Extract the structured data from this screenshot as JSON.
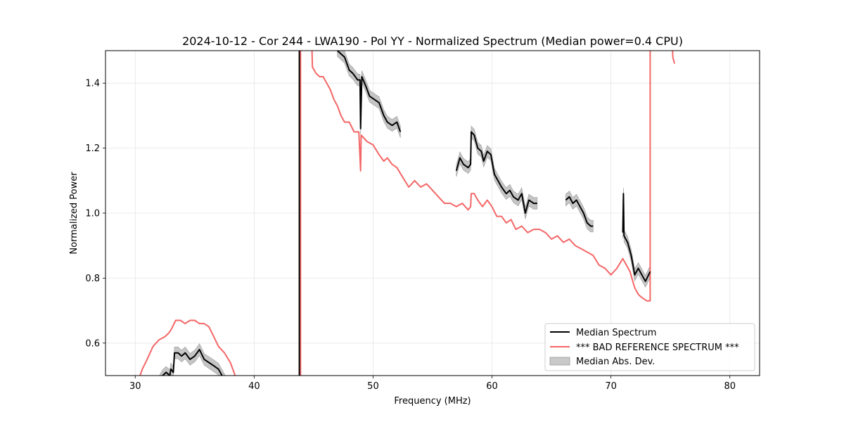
{
  "chart_data": {
    "type": "line",
    "title": "2024-10-12 - Cor 244 - LWA190 - Pol YY - Normalized Spectrum (Median power=0.4 CPU)",
    "xlabel": "Frequency (MHz)",
    "ylabel": "Normalized Power",
    "xlim": [
      27.5,
      82.5
    ],
    "ylim": [
      0.5,
      1.5
    ],
    "xticks": [
      30,
      40,
      50,
      60,
      70,
      80
    ],
    "yticks": [
      0.6,
      0.8,
      1.0,
      1.2,
      1.4
    ],
    "grid": true,
    "legend_position": "bottom-right",
    "legend": [
      {
        "key": "median",
        "label": "Median Spectrum"
      },
      {
        "key": "reference",
        "label": "*** BAD REFERENCE SPECTRUM ***"
      },
      {
        "key": "mad",
        "label": "Median Abs. Dev."
      }
    ],
    "colors": {
      "median": "#000000",
      "reference": "#f46666",
      "mad": "#bbbbbb",
      "grid": "#e6e6e6"
    },
    "series": [
      {
        "name": "Median Spectrum",
        "segments": [
          [
            [
              32.0,
              0.48
            ],
            [
              32.3,
              0.5
            ],
            [
              32.6,
              0.51
            ],
            [
              32.9,
              0.5
            ],
            [
              33.0,
              0.52
            ],
            [
              33.2,
              0.51
            ],
            [
              33.3,
              0.57
            ],
            [
              33.6,
              0.57
            ],
            [
              33.9,
              0.56
            ],
            [
              34.2,
              0.57
            ],
            [
              34.6,
              0.55
            ],
            [
              35.0,
              0.56
            ],
            [
              35.4,
              0.58
            ],
            [
              35.8,
              0.55
            ],
            [
              36.2,
              0.54
            ],
            [
              36.6,
              0.53
            ],
            [
              37.0,
              0.52
            ],
            [
              37.3,
              0.5
            ],
            [
              37.6,
              0.48
            ]
          ],
          [
            [
              43.8,
              1.6
            ],
            [
              43.8,
              0.4
            ]
          ],
          [
            [
              47.0,
              1.5
            ],
            [
              47.3,
              1.49
            ],
            [
              47.6,
              1.48
            ],
            [
              48.0,
              1.44
            ],
            [
              48.3,
              1.43
            ],
            [
              48.7,
              1.41
            ],
            [
              48.9,
              1.41
            ],
            [
              48.95,
              1.26
            ],
            [
              49.05,
              1.42
            ],
            [
              49.4,
              1.39
            ],
            [
              49.7,
              1.36
            ],
            [
              50.1,
              1.35
            ],
            [
              50.5,
              1.34
            ],
            [
              50.9,
              1.3
            ],
            [
              51.2,
              1.28
            ],
            [
              51.6,
              1.27
            ],
            [
              52.0,
              1.28
            ],
            [
              52.3,
              1.25
            ]
          ],
          [
            [
              57.0,
              1.13
            ],
            [
              57.3,
              1.17
            ],
            [
              57.6,
              1.15
            ],
            [
              58.0,
              1.14
            ],
            [
              58.2,
              1.15
            ],
            [
              58.25,
              1.25
            ],
            [
              58.5,
              1.24
            ],
            [
              58.8,
              1.2
            ],
            [
              59.1,
              1.19
            ],
            [
              59.3,
              1.16
            ],
            [
              59.6,
              1.19
            ],
            [
              59.9,
              1.18
            ],
            [
              60.2,
              1.12
            ],
            [
              60.5,
              1.1
            ],
            [
              60.8,
              1.08
            ],
            [
              61.2,
              1.06
            ],
            [
              61.5,
              1.07
            ],
            [
              61.8,
              1.05
            ],
            [
              62.2,
              1.04
            ],
            [
              62.5,
              1.06
            ],
            [
              62.8,
              1.0
            ],
            [
              63.1,
              1.04
            ],
            [
              63.5,
              1.03
            ],
            [
              63.8,
              1.03
            ]
          ],
          [
            [
              66.2,
              1.04
            ],
            [
              66.5,
              1.05
            ],
            [
              66.8,
              1.03
            ],
            [
              67.1,
              1.04
            ],
            [
              67.4,
              1.02
            ],
            [
              67.7,
              1.0
            ],
            [
              68.0,
              0.97
            ],
            [
              68.3,
              0.96
            ],
            [
              68.5,
              0.96
            ]
          ],
          [
            [
              71.0,
              0.94
            ],
            [
              71.05,
              1.06
            ],
            [
              71.1,
              0.93
            ],
            [
              71.4,
              0.91
            ],
            [
              71.7,
              0.87
            ],
            [
              72.0,
              0.81
            ],
            [
              72.3,
              0.83
            ],
            [
              72.6,
              0.81
            ],
            [
              72.9,
              0.79
            ],
            [
              73.3,
              0.82
            ]
          ]
        ]
      },
      {
        "name": "*** BAD REFERENCE SPECTRUM ***",
        "segments": [
          [
            [
              30.2,
              0.48
            ],
            [
              30.6,
              0.52
            ],
            [
              31.0,
              0.55
            ],
            [
              31.5,
              0.59
            ],
            [
              32.0,
              0.61
            ],
            [
              32.5,
              0.62
            ],
            [
              32.8,
              0.63
            ],
            [
              33.0,
              0.64
            ],
            [
              33.4,
              0.67
            ],
            [
              33.8,
              0.67
            ],
            [
              34.2,
              0.66
            ],
            [
              34.6,
              0.67
            ],
            [
              35.0,
              0.67
            ],
            [
              35.4,
              0.66
            ],
            [
              35.8,
              0.66
            ],
            [
              36.2,
              0.65
            ],
            [
              36.6,
              0.62
            ],
            [
              37.0,
              0.59
            ],
            [
              37.5,
              0.57
            ],
            [
              38.0,
              0.54
            ],
            [
              38.4,
              0.5
            ]
          ],
          [
            [
              43.9,
              1.6
            ],
            [
              43.9,
              0.3
            ]
          ],
          [
            [
              44.8,
              1.6
            ],
            [
              44.9,
              1.45
            ],
            [
              45.2,
              1.43
            ],
            [
              45.5,
              1.42
            ],
            [
              45.8,
              1.42
            ],
            [
              46.1,
              1.4
            ],
            [
              46.4,
              1.38
            ],
            [
              46.7,
              1.35
            ],
            [
              47.0,
              1.33
            ],
            [
              47.3,
              1.3
            ],
            [
              47.6,
              1.28
            ],
            [
              48.0,
              1.28
            ],
            [
              48.4,
              1.25
            ],
            [
              48.8,
              1.25
            ],
            [
              48.95,
              1.13
            ],
            [
              49.0,
              1.24
            ],
            [
              49.5,
              1.22
            ],
            [
              50.0,
              1.21
            ],
            [
              50.5,
              1.18
            ],
            [
              50.9,
              1.16
            ],
            [
              51.2,
              1.17
            ],
            [
              51.6,
              1.15
            ],
            [
              52.0,
              1.14
            ],
            [
              52.5,
              1.11
            ],
            [
              53.0,
              1.08
            ],
            [
              53.5,
              1.1
            ],
            [
              54.0,
              1.08
            ],
            [
              54.5,
              1.09
            ],
            [
              55.0,
              1.07
            ],
            [
              55.5,
              1.05
            ],
            [
              56.0,
              1.03
            ],
            [
              56.5,
              1.03
            ],
            [
              57.0,
              1.02
            ],
            [
              57.5,
              1.03
            ],
            [
              58.0,
              1.01
            ],
            [
              58.2,
              1.02
            ],
            [
              58.25,
              1.06
            ],
            [
              58.5,
              1.06
            ],
            [
              58.8,
              1.04
            ],
            [
              59.2,
              1.02
            ],
            [
              59.6,
              1.04
            ],
            [
              60.0,
              1.02
            ],
            [
              60.4,
              0.99
            ],
            [
              60.8,
              0.99
            ],
            [
              61.2,
              0.97
            ],
            [
              61.6,
              0.98
            ],
            [
              62.0,
              0.95
            ],
            [
              62.5,
              0.96
            ],
            [
              63.0,
              0.94
            ],
            [
              63.5,
              0.95
            ],
            [
              64.0,
              0.95
            ],
            [
              64.5,
              0.94
            ],
            [
              65.0,
              0.92
            ],
            [
              65.5,
              0.93
            ],
            [
              66.0,
              0.91
            ],
            [
              66.5,
              0.92
            ],
            [
              67.0,
              0.9
            ],
            [
              67.5,
              0.89
            ],
            [
              68.0,
              0.88
            ],
            [
              68.5,
              0.87
            ],
            [
              69.0,
              0.84
            ],
            [
              69.5,
              0.83
            ],
            [
              70.0,
              0.81
            ],
            [
              70.5,
              0.83
            ],
            [
              71.0,
              0.86
            ],
            [
              71.3,
              0.84
            ],
            [
              71.6,
              0.82
            ],
            [
              72.0,
              0.77
            ],
            [
              72.3,
              0.75
            ],
            [
              72.6,
              0.74
            ],
            [
              73.0,
              0.73
            ],
            [
              73.3,
              0.73
            ],
            [
              73.3,
              1.6
            ]
          ],
          [
            [
              75.1,
              1.6
            ],
            [
              75.2,
              1.48
            ],
            [
              75.35,
              1.46
            ]
          ]
        ]
      }
    ],
    "mad_band": {
      "name": "Median Abs. Dev.",
      "half_width": 0.018
    }
  }
}
